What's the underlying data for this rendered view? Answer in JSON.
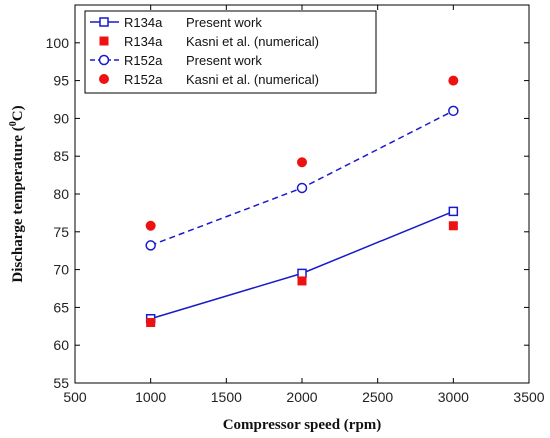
{
  "chart_data": {
    "type": "line",
    "xlabel": "Compressor speed (rpm)",
    "ylabel_main": "Discharge temperature (",
    "ylabel_sup": "0",
    "ylabel_end": "C)",
    "xlim": [
      500,
      3500
    ],
    "ylim": [
      55,
      105
    ],
    "xticks": [
      500,
      1000,
      1500,
      2000,
      2500,
      3000,
      3500
    ],
    "yticks": [
      55,
      60,
      65,
      70,
      75,
      80,
      85,
      90,
      95,
      100
    ],
    "legend_placement": "top-left",
    "series": [
      {
        "name": "R134a",
        "source": "Present work",
        "style": "solid",
        "marker": "square-open",
        "color": "#1a1acc",
        "x": [
          1000,
          2000,
          3000
        ],
        "y": [
          63.5,
          69.5,
          77.7
        ]
      },
      {
        "name": "R134a",
        "source": "Kasni et al. (numerical)",
        "style": "none",
        "marker": "square-filled",
        "color": "#ee1111",
        "x": [
          1000,
          2000,
          3000
        ],
        "y": [
          63.0,
          68.5,
          75.8
        ]
      },
      {
        "name": "R152a",
        "source": "Present work",
        "style": "dashed",
        "marker": "circle-open",
        "color": "#1a1acc",
        "x": [
          1000,
          2000,
          3000
        ],
        "y": [
          73.2,
          80.8,
          91.0
        ]
      },
      {
        "name": "R152a",
        "source": "Kasni et al. (numerical)",
        "style": "none",
        "marker": "circle-filled",
        "color": "#ee1111",
        "x": [
          1000,
          2000,
          3000
        ],
        "y": [
          75.8,
          84.2,
          95.0
        ]
      }
    ]
  }
}
